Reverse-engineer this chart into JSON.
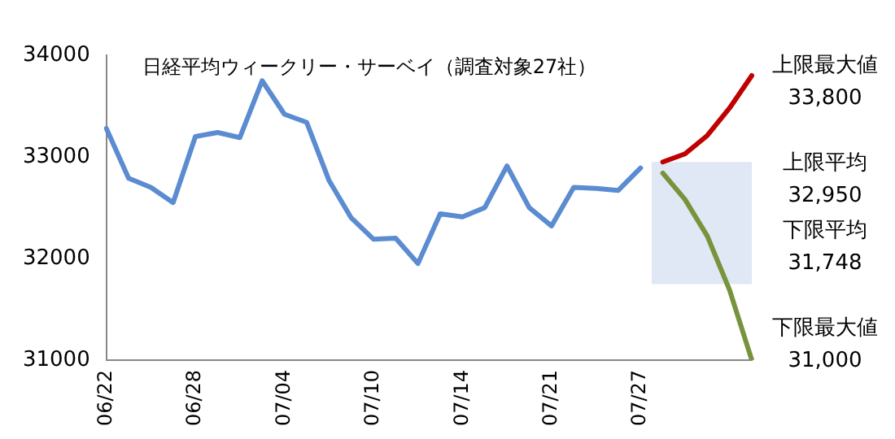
{
  "chart_data": {
    "type": "line",
    "title": "日経平均ウィークリー・サーベイ（調査対象27社）",
    "categories": [
      "06/22",
      null,
      null,
      null,
      "06/28",
      null,
      null,
      null,
      "07/04",
      null,
      null,
      null,
      "07/10",
      null,
      null,
      null,
      "07/14",
      null,
      null,
      null,
      "07/21",
      null,
      null,
      null,
      "07/27",
      null,
      null,
      null,
      null,
      null
    ],
    "series": [
      {
        "color": "#5b8bd0",
        "values": [
          33280,
          32790,
          32700,
          32550,
          33200,
          33240,
          33190,
          33750,
          33420,
          33340,
          32770,
          32400,
          32190,
          32200,
          31950,
          32440,
          32410,
          32500,
          32910,
          32500,
          32320,
          32700,
          32690,
          32670,
          32890,
          null,
          null,
          null,
          null,
          null
        ]
      },
      {
        "color": "#c00000",
        "values": [
          null,
          null,
          null,
          null,
          null,
          null,
          null,
          null,
          null,
          null,
          null,
          null,
          null,
          null,
          null,
          null,
          null,
          null,
          null,
          null,
          null,
          null,
          null,
          null,
          null,
          32950,
          33030,
          33210,
          33480,
          33800
        ]
      },
      {
        "color": "#77933c",
        "values": [
          null,
          null,
          null,
          null,
          null,
          null,
          null,
          null,
          null,
          null,
          null,
          null,
          null,
          null,
          null,
          null,
          null,
          null,
          null,
          null,
          null,
          null,
          null,
          null,
          null,
          32840,
          32580,
          32220,
          31690,
          31000
        ]
      }
    ],
    "bands": [
      {
        "axis": "y",
        "from": 31748,
        "to": 32950,
        "color": "#dfe8f4"
      }
    ],
    "annotations": [
      "上限最大値\n33,800",
      "上限平均\n32,950",
      "下限平均\n31,748",
      "下限最大値\n31,000"
    ],
    "ylim": [
      31000,
      34000
    ],
    "yticks": [
      31000,
      32000,
      33000,
      34000
    ],
    "grid": false,
    "legend": false,
    "marker": "none",
    "line_style": "solid"
  }
}
